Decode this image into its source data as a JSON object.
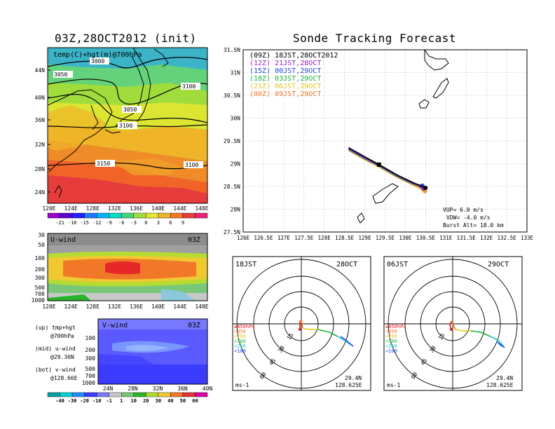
{
  "left_title": "03Z,28OCT2012 (init)",
  "right_title": "Sonde Tracking Forecast",
  "temp_panel": {
    "label": "temp(C)+hgt(m)@700hPa",
    "x_ticks": [
      "120E",
      "124E",
      "128E",
      "132E",
      "136E",
      "140E",
      "144E",
      "148E"
    ],
    "y_ticks": [
      "44N",
      "40N",
      "36N",
      "32N",
      "28N",
      "24N"
    ],
    "contours": [
      "3000",
      "3050",
      "3100",
      "3050",
      "3100",
      "3150",
      "3100"
    ],
    "colorbar_labels": [
      "-21",
      "-18",
      "-15",
      "-12",
      "-9",
      "-6",
      "-3",
      "0",
      "3",
      "6",
      "9"
    ],
    "colorbar_colors": [
      "#9b00c8",
      "#5a00d0",
      "#1e1eff",
      "#1e78ff",
      "#00b4ff",
      "#00dcc8",
      "#46d27a",
      "#a0dc3c",
      "#e6e632",
      "#f0b428",
      "#f07828",
      "#e63c3c",
      "#f01e78"
    ]
  },
  "u_panel": {
    "label": "U-wind",
    "time": "03Z",
    "y_ticks": [
      "30",
      "50",
      "100",
      "200",
      "300",
      "500",
      "700",
      "1000"
    ],
    "x_ticks": [
      "120E",
      "124E",
      "128E",
      "132E",
      "136E",
      "140E",
      "144E",
      "148E"
    ]
  },
  "v_panel": {
    "label": "V-wind",
    "time": "03Z",
    "y_ticks": [
      "100",
      "200",
      "300",
      "500",
      "700",
      "1000"
    ],
    "x_ticks": [
      "24N",
      "28N",
      "32N",
      "36N",
      "40N"
    ],
    "colorbar_labels": [
      "-40",
      "-30",
      "-20",
      "-10",
      "-1",
      "1",
      "10",
      "20",
      "30",
      "40",
      "50",
      "60"
    ],
    "colorbar_colors": [
      "#00a0a0",
      "#00d2d2",
      "#1e8cff",
      "#3c3cff",
      "#7878ff",
      "#c8c8c8",
      "#78c878",
      "#28b428",
      "#b4dc32",
      "#f0c832",
      "#f07828",
      "#e63232",
      "#dc00a0"
    ]
  },
  "legend_notes": [
    "(up) tmp+hgt",
    "@700hPa",
    "(mid) u-wind",
    "@29.36N",
    "(bot) v-wind",
    "@128.66E"
  ],
  "track_panel": {
    "legend": [
      {
        "label": "(09Z) 18JST,28OCT2012",
        "color": "#000000"
      },
      {
        "label": "(12Z) 21JST,28OCT",
        "color": "#9b1ec8"
      },
      {
        "label": "(15Z) 00JST,29OCT",
        "color": "#2846dc"
      },
      {
        "label": "(18Z) 03JST,29OCT",
        "color": "#1eb43c"
      },
      {
        "label": "(21Z) 06JST,29OCT",
        "color": "#e6c81e"
      },
      {
        "label": "(00Z) 09JST,29OCT",
        "color": "#f07828"
      }
    ],
    "x_ticks": [
      "126E",
      "126.5E",
      "127E",
      "127.5E",
      "128E",
      "128.5E",
      "129E",
      "129.5E",
      "130E",
      "130.5E",
      "131E",
      "131.5E",
      "132E",
      "132.5E",
      "133E"
    ],
    "y_ticks": [
      "31.5N",
      "31N",
      "30.5N",
      "30N",
      "29.5N",
      "29N",
      "28.5N",
      "28N",
      "27.5N"
    ],
    "vup": "VUP= 6.0 m/s",
    "vdw": "VDW= -4.0 m/s",
    "burst": "Burst Alt= 18.0 km"
  },
  "hodo_left": {
    "time_label": "18JST",
    "date_label": "28OCT",
    "ring_labels": [
      "15",
      "30",
      "45",
      "60"
    ],
    "levels": [
      {
        "label": "≥850hPa",
        "color": "#e61e1e"
      },
      {
        "label": "<850",
        "color": "#f07828"
      },
      {
        "label": "<700",
        "color": "#e6c81e"
      },
      {
        "label": "<500",
        "color": "#1eb43c"
      },
      {
        "label": "<250",
        "color": "#1ec8c8"
      },
      {
        "label": "<100",
        "color": "#1e50e6"
      }
    ],
    "unit": "ms-1",
    "lat": "29.4N",
    "lon": "128.625E"
  },
  "hodo_right": {
    "time_label": "06JST",
    "date_label": "29OCT",
    "ring_labels": [
      "15",
      "30",
      "45",
      "60"
    ],
    "levels": [
      {
        "label": "≥850hPa",
        "color": "#e61e1e"
      },
      {
        "label": "<850",
        "color": "#f07828"
      },
      {
        "label": "<700",
        "color": "#e6c81e"
      },
      {
        "label": "<500",
        "color": "#1eb43c"
      },
      {
        "label": "<250",
        "color": "#1ec8c8"
      },
      {
        "label": "<100",
        "color": "#1e50e6"
      }
    ],
    "unit": "ms-1",
    "lat": "29.4N",
    "lon": "128.625E"
  },
  "chart_data": [
    {
      "type": "heatmap",
      "title": "temp(C)+hgt(m)@700hPa",
      "xlim": [
        120,
        150
      ],
      "ylim": [
        22,
        48
      ],
      "note": "temperature shading with geopotential height contours"
    },
    {
      "type": "line",
      "title": "Sonde Tracking Forecast",
      "xlim": [
        126,
        133
      ],
      "ylim": [
        27.5,
        31.5
      ],
      "series": [
        {
          "name": "(09Z) 18JST,28OCT2012",
          "x": [
            128.6,
            129.0,
            129.35,
            129.8,
            130.2,
            130.5
          ],
          "y": [
            29.35,
            29.15,
            28.98,
            28.75,
            28.58,
            28.47
          ]
        },
        {
          "name": "(12Z) 21JST,28OCT",
          "x": [
            128.6,
            129.0,
            129.35,
            129.8,
            130.2,
            130.45
          ],
          "y": [
            29.33,
            29.13,
            28.97,
            28.74,
            28.57,
            28.45
          ]
        },
        {
          "name": "(15Z) 00JST,29OCT",
          "x": [
            128.6,
            129.0,
            129.35,
            129.8,
            130.2,
            130.42
          ],
          "y": [
            29.32,
            29.12,
            28.96,
            28.73,
            28.56,
            28.52
          ]
        },
        {
          "name": "(18Z) 03JST,29OCT",
          "x": [
            128.6,
            129.0,
            129.35,
            129.8,
            130.2,
            130.4
          ],
          "y": [
            29.31,
            29.11,
            28.95,
            28.72,
            28.55,
            28.5
          ]
        },
        {
          "name": "(21Z) 06JST,29OCT",
          "x": [
            128.6,
            129.0,
            129.35,
            129.8,
            130.2,
            130.45
          ],
          "y": [
            29.3,
            29.1,
            28.94,
            28.71,
            28.54,
            28.42
          ]
        },
        {
          "name": "(00Z) 09JST,29OCT",
          "x": [
            128.6,
            129.0,
            129.35,
            129.8,
            130.2,
            130.48
          ],
          "y": [
            29.29,
            29.09,
            28.93,
            28.7,
            28.53,
            28.4
          ]
        }
      ]
    }
  ]
}
